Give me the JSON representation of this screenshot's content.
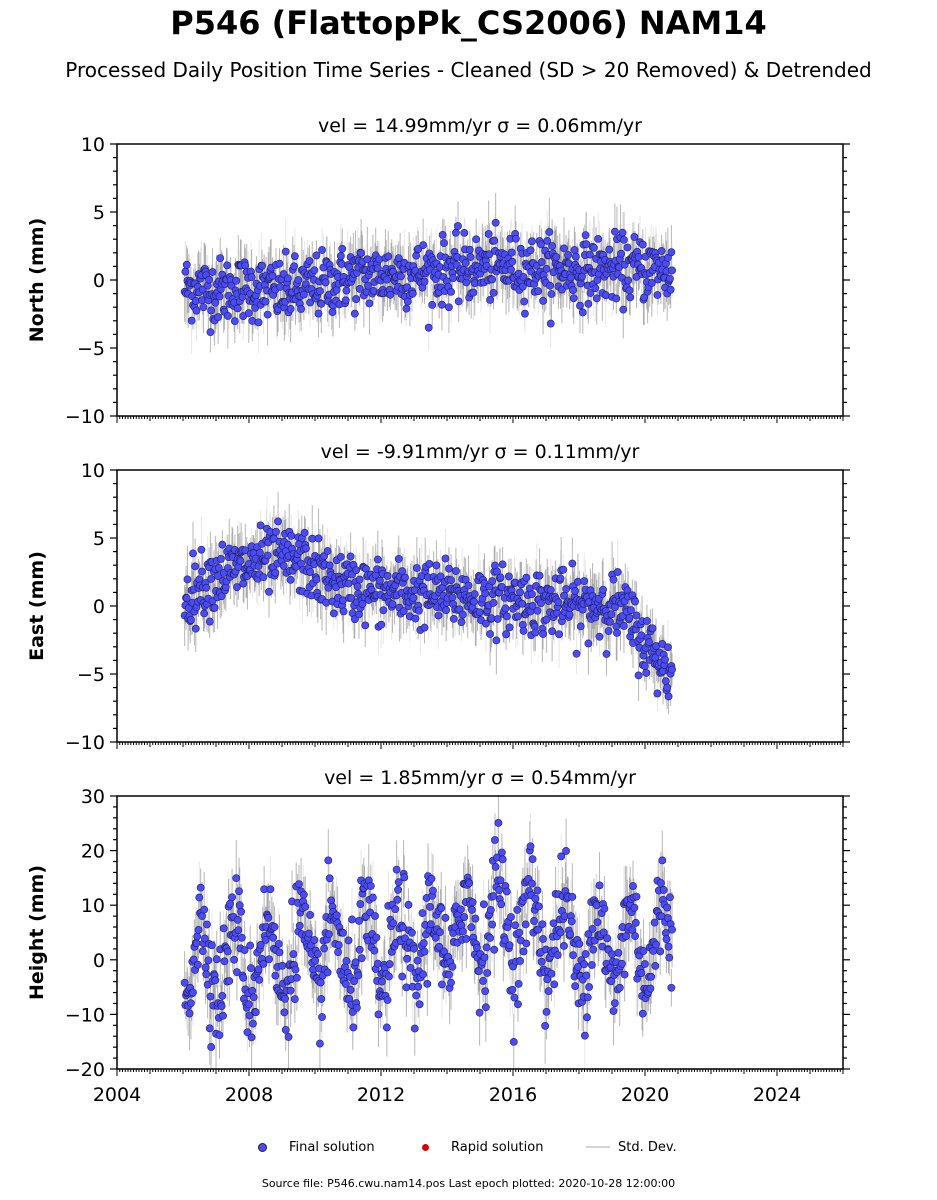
{
  "title": "P546 (FlattopPk_CS2006) NAM14",
  "subtitle": "Processed Daily Position Time Series - Cleaned (SD > 20 Removed) & Detrended",
  "footer": "Source file: P546.cwu.nam14.pos  Last epoch plotted: 2020-10-28 12:00:00",
  "legend": {
    "final": "Final solution",
    "rapid": "Rapid solution",
    "std": "Std. Dev."
  },
  "colors": {
    "final": "#4a4aff",
    "rapid": "#dd0000",
    "stddev": "#d3d3d3",
    "axis": "#000000"
  },
  "chart_data": [
    {
      "type": "scatter",
      "ylabel": "North (mm)",
      "annotation": "vel = 14.99mm/yr   σ = 0.06mm/yr",
      "xlim": [
        2004,
        2026
      ],
      "ylim": [
        -10,
        10
      ],
      "yticks": [
        -10,
        -5,
        0,
        5,
        10
      ],
      "x_start": 2006.05,
      "x_end": 2020.82,
      "series": [
        {
          "x": [
            2006.05,
            2007.0,
            2008.0,
            2009.0,
            2010.0,
            2011.0,
            2012.0,
            2013.0,
            2014.0,
            2015.0,
            2016.0,
            2017.0,
            2018.0,
            2019.0,
            2020.0,
            2020.82
          ],
          "y": [
            -0.5,
            -0.8,
            -0.6,
            -0.9,
            -0.5,
            0.2,
            0.3,
            0.5,
            0.7,
            0.9,
            1.0,
            0.8,
            0.7,
            0.8,
            0.9,
            0.6
          ]
        }
      ]
    },
    {
      "type": "scatter",
      "ylabel": "East (mm)",
      "annotation": "vel = -9.91mm/yr   σ = 0.11mm/yr",
      "xlim": [
        2004,
        2026
      ],
      "ylim": [
        -10,
        10
      ],
      "yticks": [
        -10,
        -5,
        0,
        5,
        10
      ],
      "x_start": 2006.05,
      "x_end": 2020.82,
      "series": [
        {
          "x": [
            2006.05,
            2006.5,
            2007.0,
            2008.0,
            2009.0,
            2009.7,
            2010.0,
            2010.5,
            2011.0,
            2012.0,
            2013.0,
            2014.0,
            2015.0,
            2016.0,
            2017.0,
            2018.0,
            2019.0,
            2019.5,
            2020.0,
            2020.82
          ],
          "y": [
            0.5,
            1.5,
            2.2,
            3.0,
            3.5,
            3.2,
            2.5,
            1.8,
            1.4,
            1.0,
            0.9,
            0.8,
            0.6,
            0.5,
            0.2,
            0.0,
            0.2,
            -0.8,
            -2.8,
            -5.0
          ]
        }
      ]
    },
    {
      "type": "scatter",
      "ylabel": "Height (mm)",
      "annotation": "vel = 1.85mm/yr   σ = 0.54mm/yr",
      "xlim": [
        2004,
        2026
      ],
      "ylim": [
        -20,
        30
      ],
      "yticks": [
        -20,
        -10,
        0,
        10,
        20,
        30
      ],
      "x_start": 2006.05,
      "x_end": 2020.82,
      "seasonal_amplitude": 7,
      "series": [
        {
          "x": [
            2006.05,
            2008.0,
            2010.0,
            2012.0,
            2014.0,
            2015.5,
            2016.5,
            2018.0,
            2019.0,
            2020.82
          ],
          "y": [
            0.0,
            0.0,
            1.0,
            1.0,
            4.0,
            8.0,
            6.0,
            3.0,
            2.0,
            4.0
          ]
        }
      ]
    }
  ],
  "xticks": [
    2004,
    2008,
    2012,
    2016,
    2020,
    2024
  ]
}
